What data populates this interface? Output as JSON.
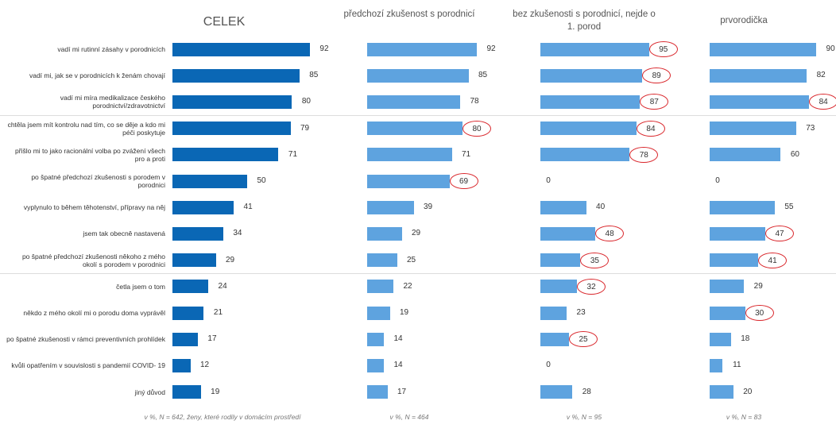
{
  "chart_data": {
    "type": "bar",
    "orientation": "horizontal",
    "categories": [
      "vadí mi rutinní zásahy v porodnicích",
      "vadí mi, jak se v porodnicích k ženám chovají",
      "vadí mi míra medikalizace českého porodnictví/zdravotnictví",
      "chtěla jsem mít kontrolu nad tím, co se děje a kdo mi péči poskytuje",
      "přišlo mi to jako racionální volba po zvážení všech pro a proti",
      "po špatné předchozí zkušenosti s porodem v porodnici",
      "vyplynulo to během těhotenství, přípravy na něj",
      "jsem tak obecně nastavená",
      "po špatné předchozí zkušenosti někoho z mého okolí s porodem v porodnici",
      "četla jsem o tom",
      "někdo z mého okolí mi o porodu doma vyprávěl",
      "po špatné zkušenosti v rámci preventivních prohlídek",
      "kvůli opatřením v souvislosti s pandemií COVID- 19",
      "jiný důvod"
    ],
    "highlight_color": "#d9262b",
    "series": [
      {
        "name": "CELEK",
        "color": "#0a67b5",
        "note": "v %, N = 642, ženy, které rodily v domácím prostředí",
        "values": [
          92,
          85,
          80,
          79,
          71,
          50,
          41,
          34,
          29,
          24,
          21,
          17,
          12,
          19
        ],
        "circled": [
          false,
          false,
          false,
          false,
          false,
          false,
          false,
          false,
          false,
          false,
          false,
          false,
          false,
          false
        ]
      },
      {
        "name": "předchozí zkušenost s porodnicí",
        "color": "#5ea3df",
        "note": "v %, N = 464",
        "values": [
          92,
          85,
          78,
          80,
          71,
          69,
          39,
          29,
          25,
          22,
          19,
          14,
          14,
          17
        ],
        "circled": [
          false,
          false,
          false,
          true,
          false,
          true,
          false,
          false,
          false,
          false,
          false,
          false,
          false,
          false
        ]
      },
      {
        "name": "bez zkušenosti s porodnicí, nejde o 1. porod",
        "color": "#5ea3df",
        "note": "v %, N = 95",
        "values": [
          95,
          89,
          87,
          84,
          78,
          0,
          40,
          48,
          35,
          32,
          23,
          25,
          0,
          28
        ],
        "circled": [
          true,
          true,
          true,
          true,
          true,
          false,
          false,
          true,
          true,
          true,
          false,
          true,
          false,
          false
        ]
      },
      {
        "name": "prvorodička",
        "color": "#5ea3df",
        "note": "v %, N = 83",
        "values": [
          90,
          82,
          84,
          73,
          60,
          0,
          55,
          47,
          41,
          29,
          30,
          18,
          11,
          20
        ],
        "circled": [
          false,
          false,
          true,
          false,
          false,
          false,
          false,
          true,
          true,
          false,
          true,
          false,
          false,
          false
        ]
      }
    ]
  }
}
